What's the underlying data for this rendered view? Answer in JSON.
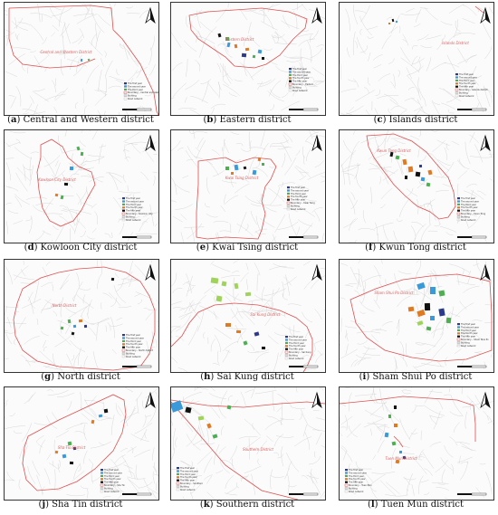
{
  "figure": {
    "panels": [
      {
        "letter": "a",
        "name": "Central and Western district",
        "map_label": "Central and Western District",
        "legend": [
          "The first year",
          "The second year",
          "The third year",
          "Boundary – Central and western",
          "Building",
          "Road network"
        ]
      },
      {
        "letter": "b",
        "name": "Eastern district",
        "map_label": "Eastern District",
        "legend": [
          "The first year",
          "The second year",
          "The third year",
          "The fourth year",
          "The fifth year",
          "Boundary – Eastern",
          "Building",
          "Road network"
        ]
      },
      {
        "letter": "c",
        "name": "Islands district",
        "map_label": "Islands District",
        "legend": [
          "The first year",
          "The second year",
          "The third year",
          "The fourth year",
          "The fifth year",
          "Boundary – Islands district",
          "Building",
          "Road network"
        ]
      },
      {
        "letter": "d",
        "name": "Kowloon City district",
        "map_label": "Kowloon City District",
        "legend": [
          "The first year",
          "The second year",
          "The third year",
          "The fourth year",
          "The fifth year",
          "Boundary – Kowloon City",
          "Building",
          "Road network"
        ]
      },
      {
        "letter": "e",
        "name": "Kwai Tsing district",
        "map_label": "Kwai Tsing District",
        "legend": [
          "The first year",
          "The second year",
          "The third year",
          "The fourth year",
          "The fifth year",
          "Boundary – Kwai Tsing",
          "Building",
          "Road network"
        ]
      },
      {
        "letter": "f",
        "name": "Kwun Tong district",
        "map_label": "Kwun Tong District",
        "legend": [
          "The first year",
          "The second year",
          "The third year",
          "The fourth year",
          "The fifth year",
          "Boundary – Kwun Tong",
          "Building",
          "Road network"
        ]
      },
      {
        "letter": "g",
        "name": "North district",
        "map_label": "North District",
        "legend": [
          "The first year",
          "The second year",
          "The third year",
          "The fourth year",
          "The fifth year",
          "Boundary – North district",
          "Building",
          "Road network"
        ]
      },
      {
        "letter": "h",
        "name": "Sai Kung district",
        "map_label": "Sai Kung District",
        "legend": [
          "The first year",
          "The second year",
          "The third year",
          "The fourth year",
          "The fifth year",
          "Boundary – Sai Kung",
          "Building",
          "Road network"
        ]
      },
      {
        "letter": "i",
        "name": "Sham Shui Po district",
        "map_label": "Sham Shui Po District",
        "legend": [
          "The first year",
          "The second year",
          "The third year",
          "The fourth year",
          "The fifth year",
          "Boundary – Sham Shui Po",
          "Building",
          "Road network"
        ]
      },
      {
        "letter": "j",
        "name": "Sha Tin district",
        "map_label": "Sha Tin District",
        "legend": [
          "The first year",
          "The second year",
          "The third year",
          "The fourth year",
          "The fifth year",
          "Boundary – Sha Tin",
          "Building",
          "Road network"
        ]
      },
      {
        "letter": "k",
        "name": "Southern district",
        "map_label": "Southern District",
        "legend": [
          "The first year",
          "The second year",
          "The third year",
          "The fourth year",
          "The fifth year",
          "Boundary – Southern",
          "Building",
          "Road network"
        ]
      },
      {
        "letter": "l",
        "name": "Tuen Mun district",
        "map_label": "Tuen Mun District",
        "legend": [
          "The first year",
          "The second year",
          "The third year",
          "The fourth year",
          "The fifth year",
          "Boundary – Tuen Mun",
          "Building",
          "Road network"
        ]
      }
    ],
    "north_arrow_symbol": "north-arrow-icon",
    "colors": {
      "boundary": "#e05050",
      "roads": "#c8c8c8",
      "year1": "#2b3a8c",
      "year2": "#3a9ad9",
      "year3": "#4caf50",
      "year4": "#e07a22",
      "year5": "#111111",
      "light_green": "#9fd35a"
    }
  }
}
